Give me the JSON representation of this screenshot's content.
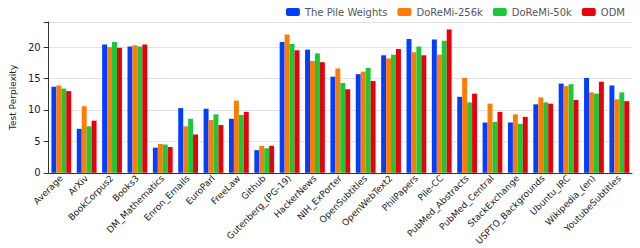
{
  "chart_data": {
    "type": "bar",
    "y_label": "Test Perplexity",
    "categories": [
      "Average",
      "ArXiv",
      "BookCorpus2",
      "Books3",
      "DM_Mathematics",
      "Enron_Emails",
      "EuroParl",
      "FreeLaw",
      "Github",
      "Gutenberg_(PG-19)",
      "HackerNews",
      "NIH_ExPorter",
      "OpenSubtitles",
      "OpenWebText2",
      "PhilPapers",
      "Pile-CC",
      "PubMed_Abstracts",
      "PubMed_Central",
      "StackExchange",
      "USPTO_Backgrounds",
      "Ubuntu_IRC",
      "Wikipedia_(en)",
      "YoutubeSubtitles"
    ],
    "series": [
      {
        "name": "The Pile Weights",
        "color": "#023eff",
        "values": [
          13.7,
          7.0,
          20.4,
          20.1,
          4.0,
          10.3,
          10.2,
          8.6,
          3.6,
          20.8,
          19.6,
          15.3,
          15.7,
          18.7,
          21.3,
          21.2,
          12.1,
          8.0,
          8.0,
          10.9,
          14.2,
          15.1,
          13.9
        ]
      },
      {
        "name": "DoReMi-256k",
        "color": "#ff7c00",
        "values": [
          13.9,
          10.6,
          20.0,
          20.3,
          4.6,
          7.4,
          8.4,
          11.5,
          4.3,
          22.0,
          17.8,
          16.6,
          16.1,
          18.2,
          19.2,
          18.8,
          15.1,
          11.0,
          9.3,
          12.0,
          13.8,
          12.8,
          11.7
        ]
      },
      {
        "name": "DoReMi-50k",
        "color": "#1ac938",
        "values": [
          13.4,
          7.4,
          20.8,
          20.1,
          4.5,
          8.6,
          9.3,
          9.2,
          3.9,
          20.5,
          19.0,
          14.3,
          16.7,
          18.8,
          20.1,
          21.0,
          11.2,
          8.1,
          7.8,
          11.2,
          14.1,
          12.6,
          12.8
        ]
      },
      {
        "name": "ODM",
        "color": "#e8000b",
        "values": [
          13.0,
          8.3,
          19.9,
          20.4,
          4.1,
          6.1,
          7.6,
          9.7,
          4.3,
          19.5,
          17.6,
          13.3,
          14.6,
          19.7,
          18.7,
          22.8,
          12.6,
          9.7,
          8.9,
          11.0,
          11.6,
          14.5,
          11.4
        ]
      }
    ],
    "ylim": [
      0,
      24
    ],
    "yticks": [
      0,
      5,
      10,
      15,
      20
    ],
    "grid": true,
    "legend": "top"
  }
}
